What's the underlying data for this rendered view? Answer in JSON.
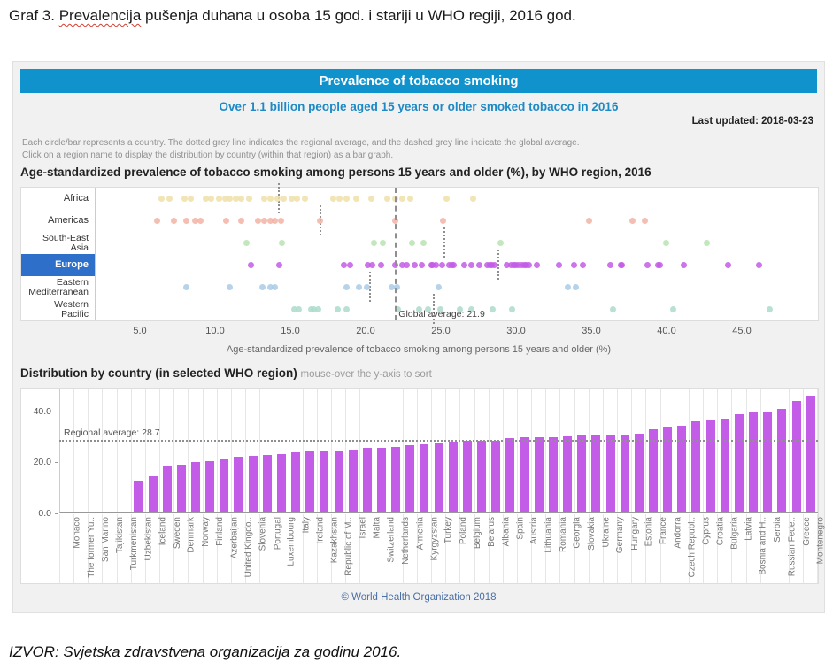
{
  "document": {
    "caption": {
      "prefix": "Graf 3. ",
      "misspelled": "Prevalencija",
      "suffix": " pušenja duhana u osoba 15 god. i stariji u WHO regiji, 2016 god."
    },
    "source_note": "IZVOR: Svjetska zdravstvena organizacija za godinu 2016."
  },
  "widget": {
    "title": "Prevalence of tobacco smoking",
    "subtitle": "Over 1.1 billion people aged 15 years or older smoked tobacco in 2016",
    "last_updated": "Last updated: 2018-03-23",
    "notes": [
      "Each circle/bar represents a country. The dotted grey line indicates the regional average, and the dashed grey line indicate the global average.",
      "Click on a region name to display the distribution by country (within that region) as a bar graph."
    ],
    "footer": "© World Health Organization 2018",
    "colors": {
      "banner": "#1092cc",
      "subtitle_text": "#1d8ac6",
      "selected_region_bg": "#2e70c9",
      "bar": "#c35ce6",
      "footer_text": "#4a6fa5"
    }
  },
  "chart_data": [
    {
      "type": "scatter",
      "id": "region-strip-plot",
      "title": "Age-standardized prevalence of tobacco smoking among persons 15 years and older (%), by WHO region, 2016",
      "xlabel": "Age-standardized prevalence of tobacco smoking among persons 15 years and older (%)",
      "x_domain": [
        2,
        50
      ],
      "x_ticks": [
        {
          "label": "5.0",
          "value": 5
        },
        {
          "label": "10.0",
          "value": 10
        },
        {
          "label": "15.0",
          "value": 15
        },
        {
          "label": "20.0",
          "value": 20
        },
        {
          "label": "25.0",
          "value": 25
        },
        {
          "label": "30.0",
          "value": 30
        },
        {
          "label": "35.0",
          "value": 35
        },
        {
          "label": "40.0",
          "value": 40
        },
        {
          "label": "45.0",
          "value": 45
        }
      ],
      "global_average": 21.9,
      "global_average_label": "Global average: 21.9",
      "legend_position": "none",
      "grid": false,
      "series": [
        {
          "name": "Africa",
          "label_lines": [
            "Africa"
          ],
          "color": "#eedfa8",
          "selected": false,
          "average": 14.1,
          "values": [
            6.4,
            6.9,
            7.9,
            8.3,
            9.3,
            9.7,
            10.2,
            10.6,
            10.9,
            11.3,
            11.7,
            12.2,
            13.2,
            13.6,
            14.1,
            14.5,
            15.0,
            15.4,
            15.9,
            17.8,
            18.2,
            18.7,
            19.3,
            20.3,
            21.4,
            21.9,
            22.4,
            22.9,
            25.3,
            27.1
          ]
        },
        {
          "name": "Americas",
          "label_lines": [
            "Americas"
          ],
          "color": "#f2b3a5",
          "selected": false,
          "average": 16.9,
          "values": [
            6.1,
            7.2,
            8.0,
            8.6,
            9.0,
            10.7,
            11.7,
            12.8,
            13.2,
            13.6,
            13.9,
            14.3,
            16.9,
            21.9,
            25.1,
            34.8,
            37.7,
            38.5
          ]
        },
        {
          "name": "South-East Asia",
          "label_lines": [
            "South-East",
            "Asia"
          ],
          "color": "#b8e3b2",
          "selected": false,
          "average": 25.1,
          "values": [
            12.0,
            14.4,
            20.5,
            21.1,
            23.0,
            23.8,
            28.9,
            39.9,
            42.6
          ]
        },
        {
          "name": "Europe",
          "label_lines": [
            "Europe"
          ],
          "color": "#c35ce6",
          "selected": true,
          "average": 28.7,
          "values": [
            12.3,
            14.2,
            18.5,
            18.9,
            20.1,
            20.4,
            21.0,
            21.9,
            22.4,
            22.7,
            23.2,
            23.7,
            24.3,
            24.4,
            24.6,
            25.0,
            25.5,
            25.7,
            25.8,
            26.5,
            27.0,
            27.5,
            28.0,
            28.2,
            28.3,
            28.5,
            29.3,
            29.6,
            29.8,
            29.9,
            30.1,
            30.3,
            30.5,
            30.6,
            30.8,
            31.3,
            32.8,
            33.8,
            34.4,
            36.2,
            36.9,
            37.0,
            38.7,
            39.4,
            39.5,
            41.1,
            44.0,
            46.1
          ]
        },
        {
          "name": "Eastern Mediterranean",
          "label_lines": [
            "Eastern",
            "Mediterranean"
          ],
          "color": "#a9cbe8",
          "selected": false,
          "average": 20.2,
          "values": [
            8.0,
            10.9,
            13.1,
            13.6,
            13.9,
            18.7,
            19.5,
            20.0,
            21.7,
            22.0,
            24.8,
            33.4,
            33.9
          ]
        },
        {
          "name": "Western Pacific",
          "label_lines": [
            "Western",
            "Pacific"
          ],
          "color": "#abdccd",
          "selected": false,
          "average": 24.4,
          "values": [
            15.2,
            15.5,
            16.3,
            16.5,
            16.8,
            18.1,
            18.7,
            22.1,
            23.5,
            24.1,
            24.9,
            26.2,
            27.0,
            28.4,
            29.7,
            36.4,
            40.4,
            46.8
          ]
        }
      ]
    },
    {
      "type": "bar",
      "id": "country-bar-chart",
      "title": "Distribution by country (in selected WHO region)",
      "subtitle": "mouse-over the y-axis to sort",
      "ylim": [
        0,
        49
      ],
      "y_ticks": [
        {
          "label": "40.0",
          "value": 40
        },
        {
          "label": "20.0",
          "value": 20
        },
        {
          "label": "0.0",
          "value": 0
        }
      ],
      "regional_average": 28.7,
      "regional_average_label": "Regional average: 28.7",
      "bar_color": "#c35ce6",
      "categories": [
        "Monaco",
        "The former Yu..",
        "San Marino",
        "Tajikistan",
        "Turkmenistan",
        "Uzbekistan",
        "Iceland",
        "Sweden",
        "Denmark",
        "Norway",
        "Finland",
        "Azerbaijan",
        "United Kingdo..",
        "Slovenia",
        "Portugal",
        "Luxembourg",
        "Italy",
        "Ireland",
        "Kazakhstan",
        "Republic of M..",
        "Israel",
        "Malta",
        "Switzerland",
        "Netherlands",
        "Armenia",
        "Kyrgyzstan",
        "Turkey",
        "Poland",
        "Belgium",
        "Belarus",
        "Albania",
        "Spain",
        "Austria",
        "Lithuania",
        "Romania",
        "Georgia",
        "Slovakia",
        "Ukraine",
        "Germany",
        "Hungary",
        "Estonia",
        "France",
        "Andorra",
        "Czech Republ..",
        "Cyprus",
        "Croatia",
        "Bulgaria",
        "Latvia",
        "Bosnia and H..",
        "Serbia",
        "Russian Fede..",
        "Greece",
        "Montenegro"
      ],
      "values": [
        null,
        null,
        null,
        null,
        null,
        12.3,
        14.2,
        18.5,
        18.9,
        20.1,
        20.4,
        21.0,
        21.9,
        22.4,
        22.7,
        23.2,
        23.7,
        24.3,
        24.4,
        24.6,
        25.0,
        25.5,
        25.7,
        25.8,
        26.5,
        27.0,
        27.5,
        28.0,
        28.2,
        28.3,
        28.5,
        29.3,
        29.6,
        29.8,
        29.9,
        30.1,
        30.3,
        30.5,
        30.6,
        30.8,
        31.3,
        32.8,
        33.8,
        34.4,
        36.2,
        36.9,
        37.0,
        38.7,
        39.4,
        39.5,
        41.1,
        44.0,
        46.1
      ]
    }
  ]
}
